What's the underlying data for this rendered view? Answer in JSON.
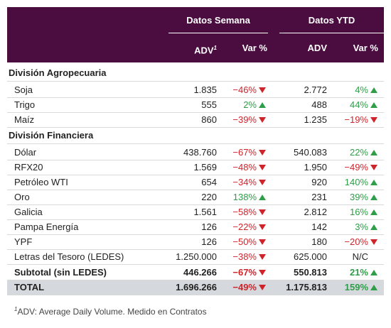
{
  "header": {
    "groups": [
      "Datos Semana",
      "Datos YTD"
    ],
    "columns": [
      "ADV",
      "Var %",
      "ADV",
      "Var %"
    ],
    "footnote_mark": "1"
  },
  "sections": [
    {
      "title": "División Agropecuaria",
      "rows": [
        [
          "Soja",
          "1.835",
          "−46%",
          "2.772",
          "4%"
        ],
        [
          "Trigo",
          "555",
          "2%",
          "488",
          "44%"
        ],
        [
          "Maíz",
          "860",
          "−39%",
          "1.235",
          "−19%"
        ]
      ]
    },
    {
      "title": "División Financiera",
      "rows": [
        [
          "Dólar",
          "438.760",
          "−67%",
          "540.083",
          "22%"
        ],
        [
          "RFX20",
          "1.569",
          "−48%",
          "1.950",
          "−49%"
        ],
        [
          "Petróleo WTI",
          "654",
          "−34%",
          "920",
          "140%"
        ],
        [
          "Oro",
          "220",
          "138%",
          "231",
          "39%"
        ],
        [
          "Galicia",
          "1.561",
          "−58%",
          "2.812",
          "16%"
        ],
        [
          "Pampa Energía",
          "126",
          "−22%",
          "142",
          "3%"
        ],
        [
          "YPF",
          "126",
          "−50%",
          "180",
          "−20%"
        ],
        [
          "Letras del Tesoro (LEDES)",
          "1.250.000",
          "−38%",
          "625.000",
          "N/C"
        ]
      ]
    }
  ],
  "subtotal": [
    "Subtotal (sin LEDES)",
    "446.266",
    "−67%",
    "550.813",
    "21%"
  ],
  "total": [
    "TOTAL",
    "1.696.266",
    "−49%",
    "1.175.813",
    "159%"
  ],
  "footnote": "ADV: Average Daily Volume. Medido en Contratos"
}
